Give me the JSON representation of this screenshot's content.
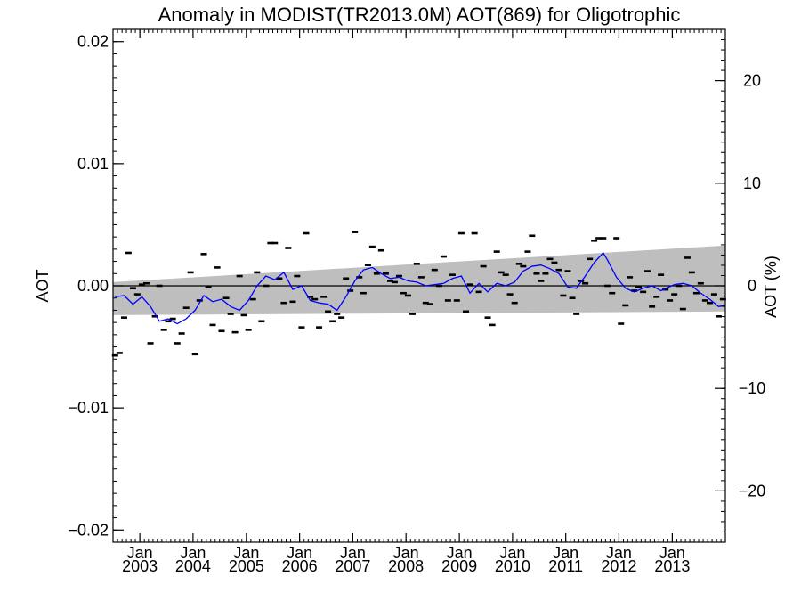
{
  "chart_data": {
    "type": "line",
    "title": "Anomaly in MODIST(TR2013.0M) AOT(869) for Oligotrophic",
    "ylabel": "AOT",
    "ylabel_right": "AOT (%)",
    "xlabel": "",
    "ylim": [
      -0.021,
      0.021
    ],
    "ylim_right": [
      -25,
      25
    ],
    "xlim": [
      "2002-07-01",
      "2013-12-31"
    ],
    "yticks": [
      -0.02,
      -0.01,
      0.0,
      0.01,
      0.02
    ],
    "ytick_labels": [
      "−0.02",
      "−0.01",
      "0.00",
      "0.01",
      "0.02"
    ],
    "yticks_right": [
      -20,
      -10,
      0,
      10,
      20
    ],
    "ytick_labels_right": [
      "−20",
      "−10",
      "0",
      "10",
      "20"
    ],
    "xticks": [
      "2003-01-01",
      "2004-01-01",
      "2005-01-01",
      "2006-01-01",
      "2007-01-01",
      "2008-01-01",
      "2009-01-01",
      "2010-01-01",
      "2011-01-01",
      "2012-01-01",
      "2013-01-01"
    ],
    "xtick_labels": [
      [
        "Jan",
        "2003"
      ],
      [
        "Jan",
        "2004"
      ],
      [
        "Jan",
        "2005"
      ],
      [
        "Jan",
        "2006"
      ],
      [
        "Jan",
        "2007"
      ],
      [
        "Jan",
        "2008"
      ],
      [
        "Jan",
        "2009"
      ],
      [
        "Jan",
        "2010"
      ],
      [
        "Jan",
        "2011"
      ],
      [
        "Jan",
        "2012"
      ],
      [
        "Jan",
        "2013"
      ]
    ],
    "uncertainty_band": {
      "x": [
        "2002-07-01",
        "2013-12-31"
      ],
      "upper": [
        0.0003,
        0.0033
      ],
      "lower": [
        -0.0024,
        -0.0021
      ],
      "color": "#bebebe"
    },
    "zero_line": 0.0,
    "series": [
      {
        "style": "marker",
        "color": "#000000",
        "points": [
          [
            "2002-07-15",
            -0.0057
          ],
          [
            "2002-08-15",
            -0.0055
          ],
          [
            "2002-09-15",
            -0.0026
          ],
          [
            "2002-10-15",
            0.0027
          ],
          [
            "2002-11-15",
            -0.0002
          ],
          [
            "2002-12-15",
            -0.0007
          ],
          [
            "2003-01-15",
            0.0001
          ],
          [
            "2003-02-15",
            0.0002
          ],
          [
            "2003-03-15",
            -0.0047
          ],
          [
            "2003-04-15",
            -0.0025
          ],
          [
            "2003-05-15",
            0.0
          ],
          [
            "2003-06-15",
            -0.0036
          ],
          [
            "2003-07-15",
            -0.0029
          ],
          [
            "2003-08-15",
            -0.0027
          ],
          [
            "2003-09-15",
            -0.0047
          ],
          [
            "2003-10-15",
            -0.0039
          ],
          [
            "2003-11-15",
            -0.0018
          ],
          [
            "2003-12-15",
            0.0011
          ],
          [
            "2004-01-15",
            -0.0056
          ],
          [
            "2004-02-15",
            -0.0012
          ],
          [
            "2004-03-15",
            0.0026
          ],
          [
            "2004-04-15",
            -0.0001
          ],
          [
            "2004-05-15",
            -0.0032
          ],
          [
            "2004-06-15",
            0.0015
          ],
          [
            "2004-07-15",
            -0.0037
          ],
          [
            "2004-08-15",
            -0.001
          ],
          [
            "2004-09-15",
            -0.0023
          ],
          [
            "2004-10-15",
            -0.0038
          ],
          [
            "2004-11-15",
            0.0008
          ],
          [
            "2004-12-15",
            -0.0024
          ],
          [
            "2005-01-15",
            -0.0036
          ],
          [
            "2005-02-15",
            -0.0011
          ],
          [
            "2005-03-15",
            0.0011
          ],
          [
            "2005-04-15",
            -0.0029
          ],
          [
            "2005-05-15",
            0.0
          ],
          [
            "2005-06-15",
            0.0035
          ],
          [
            "2005-07-15",
            0.0035
          ],
          [
            "2005-08-15",
            0.0006
          ],
          [
            "2005-09-15",
            -0.0014
          ],
          [
            "2005-10-15",
            0.0031
          ],
          [
            "2005-11-15",
            -0.0013
          ],
          [
            "2005-12-15",
            0.0008
          ],
          [
            "2006-01-15",
            -0.0034
          ],
          [
            "2006-02-15",
            0.0043
          ],
          [
            "2006-03-15",
            -0.0009
          ],
          [
            "2006-04-15",
            -0.0011
          ],
          [
            "2006-05-15",
            -0.0034
          ],
          [
            "2006-06-15",
            -0.0009
          ],
          [
            "2006-07-15",
            -0.0021
          ],
          [
            "2006-08-15",
            -0.0029
          ],
          [
            "2006-09-15",
            -0.0023
          ],
          [
            "2006-10-15",
            -0.0026
          ],
          [
            "2006-11-15",
            0.0006
          ],
          [
            "2006-12-15",
            -0.0004
          ],
          [
            "2007-01-15",
            0.0044
          ],
          [
            "2007-02-15",
            0.0007
          ],
          [
            "2007-03-15",
            -0.0006
          ],
          [
            "2007-04-15",
            0.0017
          ],
          [
            "2007-05-15",
            0.0032
          ],
          [
            "2007-06-15",
            0.001
          ],
          [
            "2007-07-15",
            0.0029
          ],
          [
            "2007-08-15",
            0.001
          ],
          [
            "2007-09-15",
            0.0004
          ],
          [
            "2007-10-15",
            0.0003
          ],
          [
            "2007-11-15",
            0.0008
          ],
          [
            "2007-12-15",
            -0.0006
          ],
          [
            "2008-01-15",
            -0.0008
          ],
          [
            "2008-02-15",
            -0.0023
          ],
          [
            "2008-03-15",
            0.0018
          ],
          [
            "2008-04-15",
            0.0007
          ],
          [
            "2008-05-15",
            -0.0014
          ],
          [
            "2008-06-15",
            -0.0015
          ],
          [
            "2008-07-15",
            0.0013
          ],
          [
            "2008-08-15",
            0.0
          ],
          [
            "2008-09-15",
            0.0024
          ],
          [
            "2008-10-15",
            -0.0012
          ],
          [
            "2008-11-15",
            0.0009
          ],
          [
            "2008-12-15",
            -0.0012
          ],
          [
            "2009-01-15",
            0.0043
          ],
          [
            "2009-02-15",
            -0.0021
          ],
          [
            "2009-03-15",
            0.0001
          ],
          [
            "2009-04-15",
            0.0043
          ],
          [
            "2009-05-15",
            -0.0005
          ],
          [
            "2009-06-15",
            0.0016
          ],
          [
            "2009-07-15",
            -0.0026
          ],
          [
            "2009-08-15",
            -0.0032
          ],
          [
            "2009-09-15",
            0.0028
          ],
          [
            "2009-10-15",
            0.0011
          ],
          [
            "2009-11-15",
            0.0009
          ],
          [
            "2009-12-15",
            -0.0007
          ],
          [
            "2010-01-15",
            -0.0014
          ],
          [
            "2010-02-15",
            0.0018
          ],
          [
            "2010-03-15",
            0.0016
          ],
          [
            "2010-04-15",
            0.0028
          ],
          [
            "2010-05-15",
            0.0041
          ],
          [
            "2010-06-15",
            0.001
          ],
          [
            "2010-07-15",
            0.0004
          ],
          [
            "2010-08-15",
            0.001
          ],
          [
            "2010-09-15",
            0.0022
          ],
          [
            "2010-10-15",
            0.0019
          ],
          [
            "2010-11-15",
            0.0013
          ],
          [
            "2010-12-15",
            -0.0008
          ],
          [
            "2011-01-15",
            0.0012
          ],
          [
            "2011-02-15",
            -0.001
          ],
          [
            "2011-03-15",
            -0.0023
          ],
          [
            "2011-04-15",
            0.0004
          ],
          [
            "2011-05-15",
            0.0002
          ],
          [
            "2011-06-15",
            0.0022
          ],
          [
            "2011-07-15",
            0.0037
          ],
          [
            "2011-08-15",
            0.0039
          ],
          [
            "2011-09-15",
            0.0039
          ],
          [
            "2011-10-15",
            0.0
          ],
          [
            "2011-11-15",
            -0.0006
          ],
          [
            "2011-12-15",
            0.0039
          ],
          [
            "2012-01-15",
            -0.0031
          ],
          [
            "2012-02-15",
            -0.0016
          ],
          [
            "2012-03-15",
            0.0007
          ],
          [
            "2012-04-15",
            -0.0004
          ],
          [
            "2012-05-15",
            -0.0001
          ],
          [
            "2012-06-15",
            -0.0005
          ],
          [
            "2012-07-15",
            0.0012
          ],
          [
            "2012-08-15",
            -0.0017
          ],
          [
            "2012-09-15",
            -0.0009
          ],
          [
            "2012-10-15",
            0.0009
          ],
          [
            "2012-11-15",
            -0.0003
          ],
          [
            "2012-12-15",
            -0.0012
          ],
          [
            "2013-01-15",
            -0.0007
          ],
          [
            "2013-02-15",
            0.0
          ],
          [
            "2013-03-15",
            -0.0019
          ],
          [
            "2013-04-15",
            0.0023
          ],
          [
            "2013-05-15",
            0.0011
          ],
          [
            "2013-06-15",
            -0.0006
          ],
          [
            "2013-07-15",
            0.0002
          ],
          [
            "2013-08-15",
            -0.0012
          ],
          [
            "2013-09-15",
            -0.0014
          ],
          [
            "2013-10-15",
            -0.0007
          ],
          [
            "2013-11-15",
            -0.0025
          ],
          [
            "2013-12-15",
            -0.0011
          ]
        ]
      },
      {
        "style": "line",
        "color": "#0000ff",
        "points": [
          [
            "2002-07-15",
            -0.0009
          ],
          [
            "2002-09-15",
            -0.0008
          ],
          [
            "2002-11-15",
            -0.0015
          ],
          [
            "2003-01-15",
            -0.0009
          ],
          [
            "2003-03-15",
            -0.0017
          ],
          [
            "2003-05-15",
            -0.0029
          ],
          [
            "2003-07-15",
            -0.0027
          ],
          [
            "2003-09-15",
            -0.0031
          ],
          [
            "2003-11-15",
            -0.0027
          ],
          [
            "2004-01-15",
            -0.002
          ],
          [
            "2004-03-15",
            -0.0008
          ],
          [
            "2004-05-15",
            -0.0013
          ],
          [
            "2004-07-15",
            -0.0011
          ],
          [
            "2004-09-15",
            -0.0017
          ],
          [
            "2004-11-15",
            -0.002
          ],
          [
            "2005-01-15",
            -0.0012
          ],
          [
            "2005-03-15",
            0.0
          ],
          [
            "2005-05-15",
            0.0008
          ],
          [
            "2005-07-15",
            0.0005
          ],
          [
            "2005-09-15",
            0.0011
          ],
          [
            "2005-11-15",
            -0.0003
          ],
          [
            "2006-01-15",
            0.0
          ],
          [
            "2006-03-15",
            -0.0012
          ],
          [
            "2006-05-15",
            -0.0014
          ],
          [
            "2006-07-15",
            -0.0015
          ],
          [
            "2006-09-15",
            -0.002
          ],
          [
            "2006-11-15",
            -0.0009
          ],
          [
            "2007-01-15",
            0.0004
          ],
          [
            "2007-03-15",
            0.0013
          ],
          [
            "2007-05-15",
            0.0015
          ],
          [
            "2007-07-15",
            0.001
          ],
          [
            "2007-09-15",
            0.0006
          ],
          [
            "2007-11-15",
            0.0007
          ],
          [
            "2008-01-15",
            0.0004
          ],
          [
            "2008-03-15",
            0.0003
          ],
          [
            "2008-05-15",
            0.0
          ],
          [
            "2008-07-15",
            0.0001
          ],
          [
            "2008-09-15",
            0.0002
          ],
          [
            "2008-11-15",
            0.0006
          ],
          [
            "2009-01-15",
            0.0008
          ],
          [
            "2009-03-15",
            -0.0006
          ],
          [
            "2009-05-15",
            0.0002
          ],
          [
            "2009-07-15",
            -0.0005
          ],
          [
            "2009-09-15",
            0.0002
          ],
          [
            "2009-11-15",
            0.0
          ],
          [
            "2010-01-15",
            0.0003
          ],
          [
            "2010-03-15",
            0.0012
          ],
          [
            "2010-05-15",
            0.0016
          ],
          [
            "2010-07-15",
            0.0017
          ],
          [
            "2010-09-15",
            0.0014
          ],
          [
            "2010-11-15",
            0.001
          ],
          [
            "2011-01-15",
            -0.0001
          ],
          [
            "2011-03-15",
            -0.0002
          ],
          [
            "2011-05-15",
            0.0008
          ],
          [
            "2011-07-15",
            0.0019
          ],
          [
            "2011-09-15",
            0.0027
          ],
          [
            "2011-10-15",
            0.0021
          ],
          [
            "2011-12-15",
            0.0007
          ],
          [
            "2012-02-15",
            -0.0002
          ],
          [
            "2012-04-15",
            -0.0005
          ],
          [
            "2012-06-15",
            -0.0002
          ],
          [
            "2012-08-15",
            0.0
          ],
          [
            "2012-10-15",
            -0.0004
          ],
          [
            "2013-01-15",
            0.0001
          ],
          [
            "2013-03-15",
            0.0002
          ],
          [
            "2013-05-15",
            0.0
          ],
          [
            "2013-07-15",
            -0.0006
          ],
          [
            "2013-09-15",
            -0.0011
          ],
          [
            "2013-11-15",
            -0.0017
          ],
          [
            "2013-12-31",
            -0.0016
          ]
        ]
      }
    ]
  }
}
